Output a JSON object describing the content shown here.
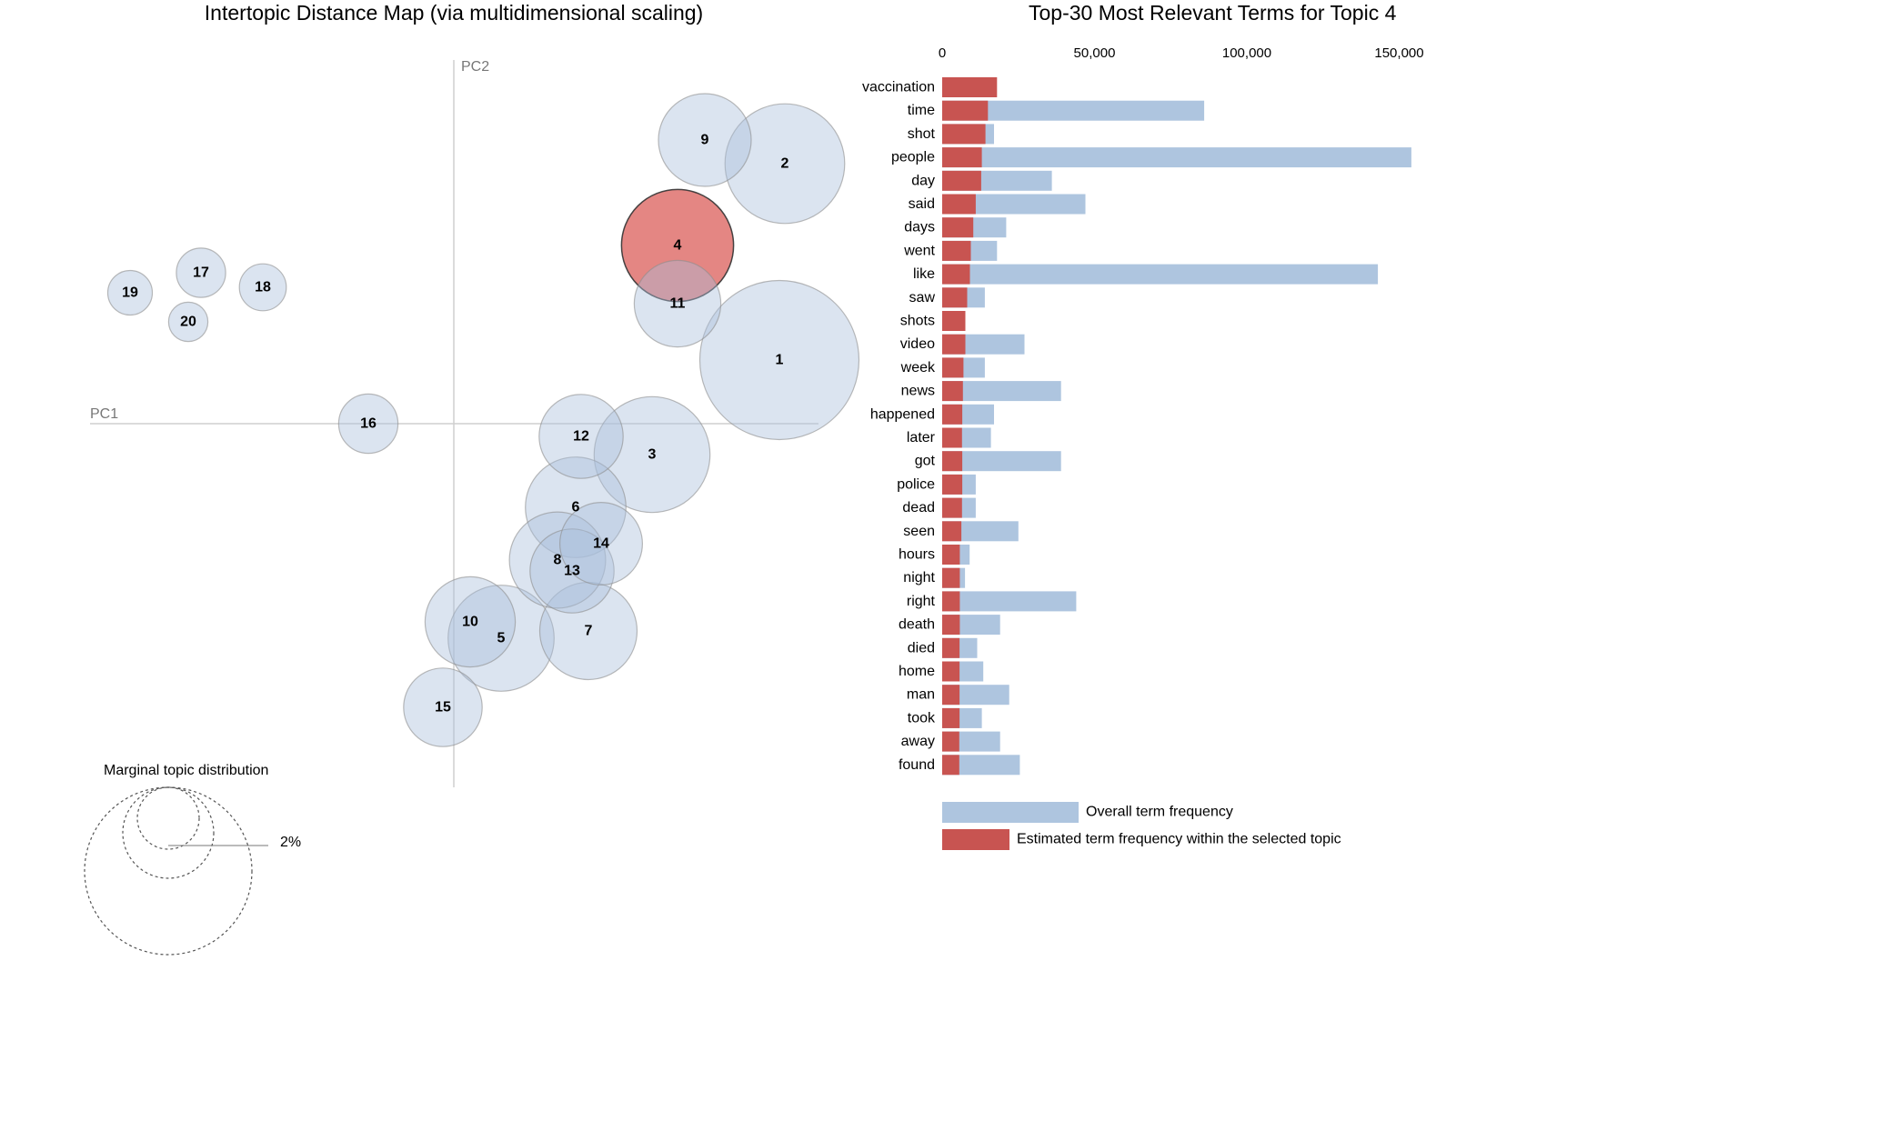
{
  "chart_data": [
    {
      "type": "scatter",
      "title": "Intertopic Distance Map (via multidimensional scaling)",
      "xlabel": "PC1",
      "ylabel": "PC2",
      "selected_topic": "4",
      "topics": [
        {
          "label": "1",
          "pc1": 0.179,
          "pc2": 0.035,
          "size": 11.5
        },
        {
          "label": "2",
          "pc1": 0.182,
          "pc2": 0.143,
          "size": 6.5
        },
        {
          "label": "3",
          "pc1": 0.109,
          "pc2": -0.017,
          "size": 6.1
        },
        {
          "label": "4",
          "pc1": 0.123,
          "pc2": 0.098,
          "size": 5.7
        },
        {
          "label": "5",
          "pc1": 0.026,
          "pc2": -0.118,
          "size": 5.1
        },
        {
          "label": "6",
          "pc1": 0.067,
          "pc2": -0.046,
          "size": 4.6
        },
        {
          "label": "7",
          "pc1": 0.074,
          "pc2": -0.114,
          "size": 4.3
        },
        {
          "label": "8",
          "pc1": 0.057,
          "pc2": -0.075,
          "size": 4.2
        },
        {
          "label": "9",
          "pc1": 0.138,
          "pc2": 0.156,
          "size": 3.9
        },
        {
          "label": "10",
          "pc1": 0.009,
          "pc2": -0.109,
          "size": 3.7
        },
        {
          "label": "11",
          "pc1": 0.123,
          "pc2": 0.066,
          "size": 3.4
        },
        {
          "label": "12",
          "pc1": 0.07,
          "pc2": -0.007,
          "size": 3.2
        },
        {
          "label": "13",
          "pc1": 0.065,
          "pc2": -0.081,
          "size": 3.2
        },
        {
          "label": "14",
          "pc1": 0.081,
          "pc2": -0.066,
          "size": 3.1
        },
        {
          "label": "15",
          "pc1": -0.006,
          "pc2": -0.156,
          "size": 2.8
        },
        {
          "label": "16",
          "pc1": -0.047,
          "pc2": 0.0,
          "size": 1.6
        },
        {
          "label": "17",
          "pc1": -0.139,
          "pc2": 0.083,
          "size": 1.1
        },
        {
          "label": "18",
          "pc1": -0.105,
          "pc2": 0.075,
          "size": 1.0
        },
        {
          "label": "19",
          "pc1": -0.178,
          "pc2": 0.072,
          "size": 0.9
        },
        {
          "label": "20",
          "pc1": -0.146,
          "pc2": 0.056,
          "size": 0.7
        }
      ],
      "marginal_title": "Marginal topic distribution",
      "marginal_labels": [
        "2%"
      ]
    },
    {
      "type": "bar",
      "orientation": "horizontal",
      "title": "Top-30 Most Relevant Terms for Topic 4",
      "tick_values": [
        0,
        50000,
        100000,
        150000
      ],
      "tick_labels": [
        "0",
        "50,000",
        "100,000",
        "150,000"
      ],
      "terms": [
        "vaccination",
        "time",
        "shot",
        "people",
        "day",
        "said",
        "days",
        "went",
        "like",
        "saw",
        "shots",
        "video",
        "week",
        "news",
        "happened",
        "later",
        "got",
        "police",
        "dead",
        "seen",
        "hours",
        "night",
        "right",
        "death",
        "died",
        "home",
        "man",
        "took",
        "away",
        "found"
      ],
      "series": [
        {
          "name": "Overall term frequency",
          "values": [
            14000,
            86000,
            17000,
            154000,
            36000,
            47000,
            21000,
            18000,
            143000,
            14000,
            6000,
            27000,
            14000,
            39000,
            17000,
            16000,
            39000,
            11000,
            11000,
            25000,
            9000,
            7500,
            44000,
            19000,
            11500,
            13500,
            22000,
            13000,
            19000,
            25500
          ]
        },
        {
          "name": "Estimated term frequency within the selected topic",
          "values": [
            18000,
            15000,
            14200,
            13000,
            12800,
            11000,
            10200,
            9400,
            9100,
            8200,
            7600,
            7600,
            7000,
            6800,
            6600,
            6500,
            6600,
            6600,
            6500,
            6300,
            5800,
            5800,
            5800,
            5800,
            5700,
            5700,
            5700,
            5700,
            5600,
            5600
          ]
        }
      ],
      "legend": [
        "Overall term frequency",
        "Estimated term frequency within the selected topic"
      ],
      "colors": {
        "overall": "#aec5df",
        "topic": "#c85451"
      }
    }
  ]
}
